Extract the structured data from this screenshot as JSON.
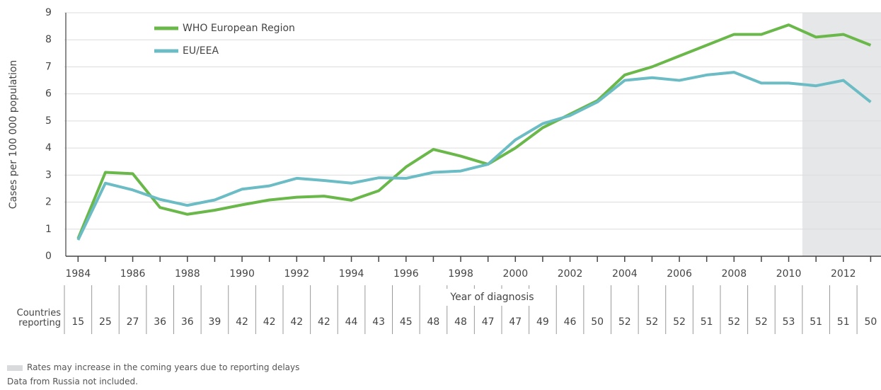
{
  "chart_data": {
    "type": "line",
    "y_label": "Cases per 100 000 population",
    "x_label": "Year of diagnosis",
    "x": [
      1984,
      1985,
      1986,
      1987,
      1988,
      1989,
      1990,
      1991,
      1992,
      1993,
      1994,
      1995,
      1996,
      1997,
      1998,
      1999,
      2000,
      2001,
      2002,
      2003,
      2004,
      2005,
      2006,
      2007,
      2008,
      2009,
      2010,
      2011,
      2012,
      2013
    ],
    "series": [
      {
        "name": "WHO European Region",
        "color": "#6ab74a",
        "values": [
          0.65,
          3.1,
          3.05,
          1.8,
          1.55,
          1.7,
          1.9,
          2.08,
          2.18,
          2.22,
          2.07,
          2.42,
          3.3,
          3.95,
          3.7,
          3.4,
          4.0,
          4.75,
          5.25,
          5.75,
          6.7,
          7.0,
          7.4,
          7.8,
          8.2,
          8.2,
          8.55,
          8.1,
          8.2,
          7.8
        ]
      },
      {
        "name": "EU/EEA",
        "color": "#6bbcc4",
        "values": [
          0.6,
          2.7,
          2.45,
          2.1,
          1.88,
          2.08,
          2.48,
          2.6,
          2.88,
          2.8,
          2.7,
          2.9,
          2.88,
          3.1,
          3.15,
          3.4,
          4.3,
          4.9,
          5.2,
          5.7,
          6.5,
          6.6,
          6.5,
          6.7,
          6.8,
          6.4,
          6.4,
          6.3,
          6.5,
          5.7
        ]
      }
    ],
    "xlim": [
      1983.5,
      2013.3
    ],
    "xticks": [
      1984,
      1986,
      1988,
      1990,
      1992,
      1994,
      1996,
      1998,
      2000,
      2002,
      2004,
      2006,
      2008,
      2010,
      2012
    ],
    "ylim": [
      0,
      9
    ],
    "yticks": [
      0,
      1,
      2,
      3,
      4,
      5,
      6,
      7,
      8,
      9
    ],
    "grid": true,
    "legend": "top-left",
    "shaded_x": [
      2011,
      2013
    ],
    "countries_reporting": {
      "label": "Countries reporting",
      "values": [
        15,
        25,
        27,
        36,
        36,
        39,
        42,
        42,
        42,
        42,
        44,
        43,
        45,
        48,
        48,
        47,
        47,
        49,
        46,
        50,
        52,
        52,
        52,
        51,
        52,
        52,
        53,
        51,
        51,
        50
      ]
    },
    "notes": [
      "Rates may increase in the coming years due to reporting delays",
      "Data from Russia not included."
    ]
  }
}
